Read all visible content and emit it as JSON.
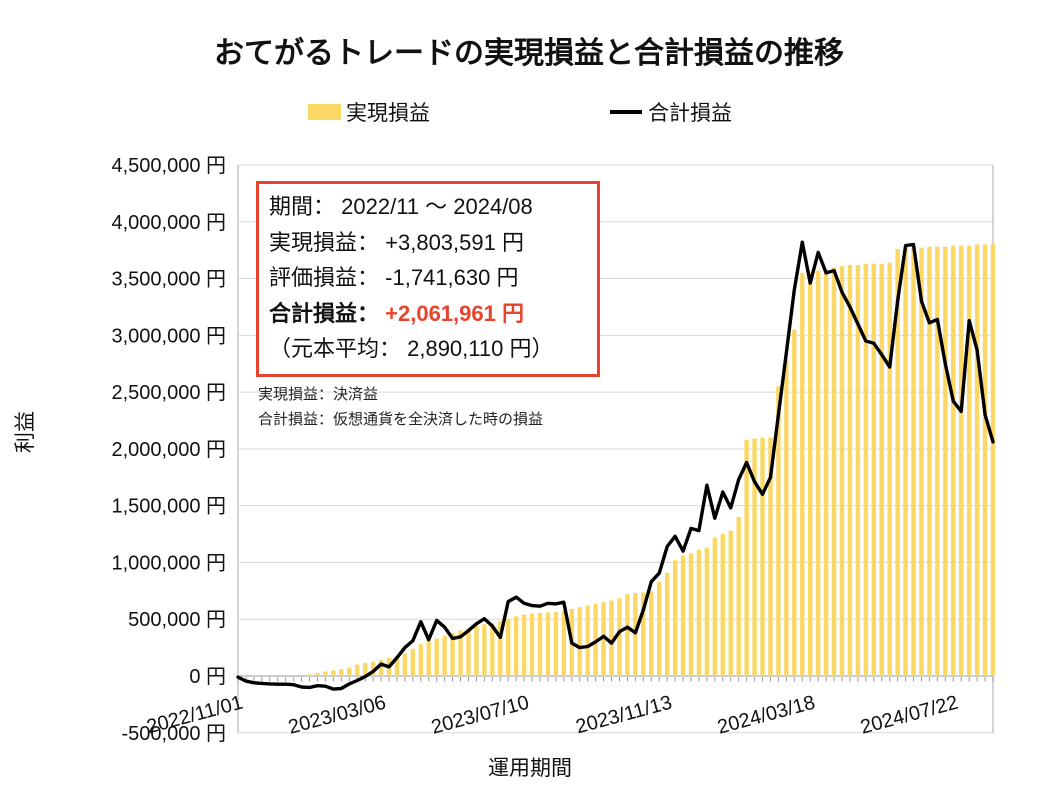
{
  "title": "おてがるトレードの実現損益と合計損益の推移",
  "legend": {
    "realized_label": "実現損益",
    "total_label": "合計損益"
  },
  "summary_box": {
    "period_label": "期間：",
    "period_value": "2022/11 ～ 2024/08",
    "realized_label": "実現損益：",
    "realized_value": "+3,803,591 円",
    "unrealized_label": "評価損益：",
    "unrealized_value": "-1,741,630 円",
    "total_label": "合計損益：",
    "total_value": "+2,061,961 円",
    "principal_line": "（元本平均： 2,890,110 円）"
  },
  "notes": {
    "realized_note": "実現損益：決済益",
    "total_note": "合計損益：仮想通貨を全決済した時の損益"
  },
  "colors": {
    "bar": "#FBD765",
    "line": "#000000",
    "grid": "#D9D9D9",
    "axis": "#999999",
    "border": "#C6C6C6",
    "accent": "#E8432C",
    "text": "#111111"
  },
  "chart_data": {
    "type": "bar+line combo",
    "title": "おてがるトレードの実現損益と合計損益の推移",
    "xlabel": "運用期間",
    "ylabel": "利益",
    "x_unit": "week",
    "start_date": "2022/11/01",
    "end_date": "2024/08",
    "ylim": [
      -500000,
      4500000
    ],
    "grid": true,
    "legend_position": "top",
    "y_ticks": {
      "values": [
        4500000,
        4000000,
        3500000,
        3000000,
        2500000,
        2000000,
        1500000,
        1000000,
        500000,
        0,
        -500000
      ],
      "labels": [
        "4,500,000 円",
        "4,000,000 円",
        "3,500,000 円",
        "3,000,000 円",
        "2,500,000 円",
        "2,000,000 円",
        "1,500,000 円",
        "1,000,000 円",
        "500,000 円",
        "0 円",
        "-500,000 円"
      ]
    },
    "x_ticks": {
      "weeks": [
        0,
        18,
        36,
        54,
        72,
        90
      ],
      "labels": [
        "2022/11/01",
        "2023/03/06",
        "2023/07/10",
        "2023/11/13",
        "2024/03/18",
        "2024/07/22"
      ]
    },
    "series": [
      {
        "name": "実現損益",
        "type": "bar",
        "color": "#FBD765",
        "values": [
          0,
          0,
          0,
          0,
          0,
          0,
          0,
          0,
          0,
          15000,
          25000,
          40000,
          50000,
          60000,
          75000,
          100000,
          115000,
          125000,
          140000,
          160000,
          175000,
          200000,
          240000,
          280000,
          310000,
          330000,
          355000,
          380000,
          400000,
          420000,
          440000,
          455000,
          465000,
          480000,
          505000,
          525000,
          540000,
          550000,
          555000,
          560000,
          565000,
          575000,
          590000,
          605000,
          620000,
          635000,
          650000,
          665000,
          685000,
          720000,
          730000,
          735000,
          745000,
          830000,
          910000,
          1020000,
          1060000,
          1080000,
          1110000,
          1130000,
          1220000,
          1250000,
          1280000,
          1400000,
          2080000,
          2090000,
          2100000,
          2100000,
          2550000,
          2780000,
          3050000,
          3550000,
          3560000,
          3570000,
          3580000,
          3600000,
          3610000,
          3620000,
          3620000,
          3630000,
          3630000,
          3630000,
          3640000,
          3760000,
          3770000,
          3770000,
          3770000,
          3780000,
          3780000,
          3780000,
          3790000,
          3790000,
          3790000,
          3800000,
          3800000,
          3803591
        ]
      },
      {
        "name": "合計損益",
        "type": "line",
        "color": "#000000",
        "values": [
          -10000,
          -45000,
          -60000,
          -65000,
          -70000,
          -72000,
          -72000,
          -77000,
          -97000,
          -100000,
          -85000,
          -90000,
          -115000,
          -110000,
          -70000,
          -40000,
          -5000,
          40000,
          105000,
          80000,
          160000,
          250000,
          310000,
          478000,
          320000,
          490000,
          430000,
          330000,
          345000,
          400000,
          460000,
          505000,
          440000,
          340000,
          655000,
          695000,
          640000,
          620000,
          615000,
          640000,
          635000,
          650000,
          290000,
          250000,
          260000,
          300000,
          350000,
          290000,
          390000,
          430000,
          380000,
          580000,
          830000,
          905000,
          1140000,
          1230000,
          1100000,
          1300000,
          1280000,
          1680000,
          1390000,
          1620000,
          1480000,
          1730000,
          1880000,
          1710000,
          1600000,
          1750000,
          2300000,
          2850000,
          3400000,
          3820000,
          3460000,
          3730000,
          3550000,
          3570000,
          3380000,
          3250000,
          3100000,
          2950000,
          2930000,
          2830000,
          2720000,
          3300000,
          3790000,
          3800000,
          3300000,
          3110000,
          3140000,
          2750000,
          2420000,
          2330000,
          3130000,
          2870000,
          2300000,
          2061961
        ]
      }
    ]
  }
}
